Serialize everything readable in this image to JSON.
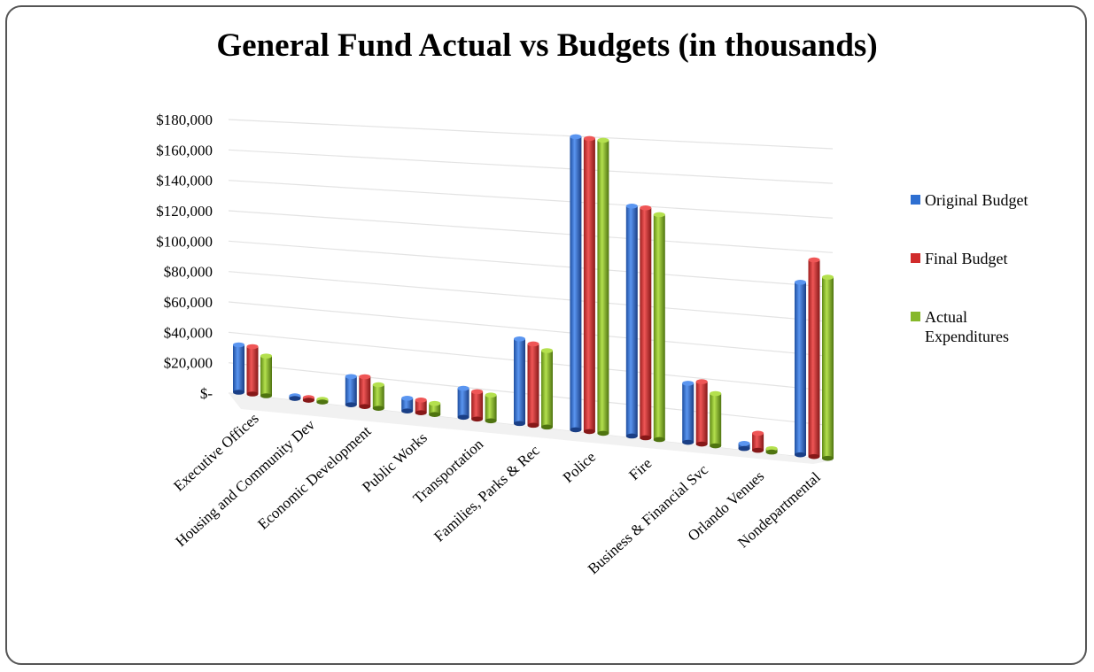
{
  "title": "General Fund Actual vs Budgets (in thousands)",
  "legend": [
    {
      "label": "Original Budget",
      "color": "#2e6fd1"
    },
    {
      "label": "Final Budget",
      "color": "#d12c2c"
    },
    {
      "label": "Actual Expenditures",
      "color": "#86b82a"
    }
  ],
  "chart_data": {
    "type": "bar",
    "title": "General Fund Actual vs Budgets (in thousands)",
    "xlabel": "",
    "ylabel": "",
    "ylim": [
      0,
      180000
    ],
    "y_ticks": [
      "$-",
      "$20,000",
      "$40,000",
      "$60,000",
      "$80,000",
      "$100,000",
      "$120,000",
      "$140,000",
      "$160,000",
      "$180,000"
    ],
    "categories": [
      "Executive Offices",
      "Housing and Community Dev",
      "Economic Development",
      "Public Works",
      "Transportation",
      "Families, Parks & Rec",
      "Police",
      "Fire",
      "Business & Financial Svc",
      "Orlando Venues",
      "Nondepartmental"
    ],
    "series": [
      {
        "name": "Original Budget",
        "values": [
          31000,
          500,
          18000,
          8000,
          18000,
          52000,
          178000,
          138000,
          35000,
          3000,
          100000
        ]
      },
      {
        "name": "Final Budget",
        "values": [
          31000,
          500,
          19000,
          8000,
          17000,
          50000,
          178000,
          138000,
          37000,
          10000,
          114000
        ]
      },
      {
        "name": "Actual Expenditures",
        "values": [
          26000,
          500,
          15000,
          7000,
          16000,
          47000,
          178000,
          135000,
          31000,
          2000,
          105000
        ]
      }
    ],
    "grid": true,
    "legend_position": "right"
  }
}
